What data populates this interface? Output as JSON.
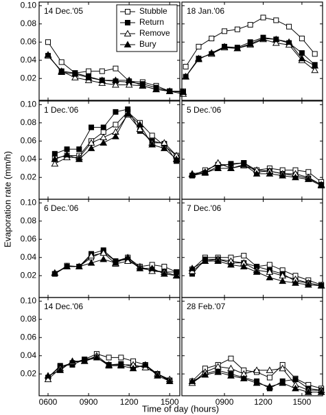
{
  "ylabel": "Evaporation rate (mm/h)",
  "xlabel": "Time of day (hours)",
  "chart_data": [
    {
      "type": "line",
      "annotation": "14 Dec.'05",
      "legend": "upper right",
      "x": [
        6,
        7,
        8,
        9,
        10,
        11,
        12,
        13,
        14,
        15,
        16
      ],
      "series": [
        {
          "name": "Stubble",
          "color": "#000000",
          "marker": "square",
          "filled": false,
          "values": [
            0.06,
            0.038,
            0.026,
            0.028,
            0.028,
            0.031,
            0.017,
            0.016,
            0.012,
            0.006,
            0.006
          ]
        },
        {
          "name": "Return",
          "color": "#000000",
          "marker": "square",
          "filled": true,
          "values": [
            0.045,
            0.028,
            0.026,
            0.022,
            0.018,
            0.017,
            0.016,
            0.014,
            0.01,
            0.006,
            0.005
          ]
        },
        {
          "name": "Remove",
          "color": "#000000",
          "marker": "triangle",
          "filled": false,
          "values": [
            0.045,
            0.028,
            0.021,
            0.018,
            0.015,
            0.013,
            0.013,
            0.012,
            0.008,
            0.006,
            0.003
          ]
        },
        {
          "name": "Bury",
          "color": "#000000",
          "marker": "triangle",
          "filled": true,
          "values": [
            0.046,
            0.027,
            0.025,
            0.021,
            0.018,
            0.018,
            0.018,
            0.012,
            0.008,
            0.006,
            0.005
          ]
        }
      ],
      "xlim": [
        5.34,
        15.75
      ],
      "ylim": [
        -0.004,
        0.104
      ],
      "ytick_labels": true,
      "xtick_labels": false,
      "xticks": [
        {
          "value": 6,
          "label": "0600"
        },
        {
          "value": 9,
          "label": "0900"
        },
        {
          "value": 12,
          "label": "1200"
        },
        {
          "value": 15,
          "label": "1500"
        }
      ],
      "yticks": [
        0.02,
        0.04,
        0.06,
        0.08,
        {
          "value": 0.1,
          "label": "0.10"
        }
      ]
    },
    {
      "type": "line",
      "annotation": "18 Jan.'06",
      "x": [
        6,
        7,
        8,
        9,
        10,
        11,
        12,
        13,
        14,
        15,
        16
      ],
      "series": [
        {
          "values": [
            0.033,
            0.055,
            0.064,
            0.072,
            0.074,
            0.079,
            0.087,
            0.084,
            0.077,
            0.064,
            0.047
          ]
        },
        {
          "values": [
            0.022,
            0.042,
            0.047,
            0.055,
            0.054,
            0.06,
            0.065,
            0.063,
            0.059,
            0.048,
            0.035
          ]
        },
        {
          "values": [
            0.022,
            0.042,
            0.047,
            0.054,
            0.053,
            0.057,
            0.063,
            0.059,
            0.057,
            0.04,
            0.029
          ]
        },
        {
          "values": [
            0.022,
            0.041,
            0.048,
            0.055,
            0.053,
            0.058,
            0.064,
            0.063,
            0.06,
            0.042,
            0.034
          ]
        }
      ],
      "xlim": [
        5.7,
        16.6
      ],
      "ylim": [
        -0.004,
        0.104
      ],
      "ytick_labels": false,
      "xtick_labels": false,
      "xticks": [
        {
          "value": 9,
          "label": "0900"
        },
        {
          "value": 12,
          "label": "1200"
        },
        {
          "value": 15,
          "label": "1500"
        }
      ],
      "yticks": [
        0.02,
        0.04,
        0.06,
        0.08,
        {
          "value": 0.1,
          "label": "0.10"
        }
      ]
    },
    {
      "type": "line",
      "annotation": "1 Dec.'06",
      "x": [
        6.5,
        7.4,
        8.3,
        9.2,
        10.1,
        11,
        11.9,
        12.8,
        13.7,
        14.6,
        15.5
      ],
      "series": [
        {
          "values": [
            0.041,
            0.044,
            0.044,
            0.06,
            0.07,
            0.078,
            0.092,
            0.08,
            0.066,
            0.055,
            0.044
          ]
        },
        {
          "values": [
            0.046,
            0.051,
            0.051,
            0.075,
            0.075,
            0.092,
            0.095,
            0.071,
            0.06,
            0.057,
            0.038
          ]
        },
        {
          "values": [
            0.035,
            0.042,
            0.042,
            0.058,
            0.064,
            0.07,
            0.089,
            0.073,
            0.058,
            0.058,
            0.044
          ]
        },
        {
          "values": [
            0.04,
            0.045,
            0.04,
            0.052,
            0.058,
            0.065,
            0.09,
            0.078,
            0.056,
            0.052,
            0.04
          ]
        }
      ],
      "xlim": [
        5.34,
        15.75
      ],
      "ylim": [
        -0.004,
        0.104
      ],
      "ytick_labels": true,
      "xtick_labels": false,
      "xticks": [
        {
          "value": 6,
          "label": "0600"
        },
        {
          "value": 9,
          "label": "0900"
        },
        {
          "value": 12,
          "label": "1200"
        },
        {
          "value": 15,
          "label": "1500"
        }
      ],
      "yticks": [
        0.02,
        0.04,
        0.06,
        0.08,
        {
          "value": 0.1,
          "label": "0.10"
        }
      ]
    },
    {
      "type": "line",
      "annotation": "5 Dec.'06",
      "x": [
        6.5,
        7.5,
        8.5,
        9.5,
        10.5,
        11.5,
        12.5,
        13.5,
        14.5,
        15.5,
        16.5
      ],
      "series": [
        {
          "values": [
            0.022,
            0.028,
            0.034,
            0.034,
            0.036,
            0.028,
            0.03,
            0.028,
            0.028,
            0.026,
            0.015
          ]
        },
        {
          "values": [
            0.022,
            0.025,
            0.032,
            0.035,
            0.036,
            0.026,
            0.027,
            0.024,
            0.022,
            0.019,
            0.012
          ]
        },
        {
          "values": [
            0.024,
            0.026,
            0.036,
            0.03,
            0.033,
            0.028,
            0.027,
            0.024,
            0.024,
            0.02,
            0.012
          ]
        },
        {
          "values": [
            0.023,
            0.025,
            0.03,
            0.03,
            0.034,
            0.024,
            0.024,
            0.022,
            0.02,
            0.018,
            0.011
          ]
        }
      ],
      "xlim": [
        5.7,
        16.6
      ],
      "ylim": [
        -0.004,
        0.104
      ],
      "ytick_labels": false,
      "xtick_labels": false,
      "xticks": [
        {
          "value": 9,
          "label": "0900"
        },
        {
          "value": 12,
          "label": "1200"
        },
        {
          "value": 15,
          "label": "1500"
        }
      ],
      "yticks": [
        0.02,
        0.04,
        0.06,
        0.08,
        {
          "value": 0.1,
          "label": "0.10"
        }
      ]
    },
    {
      "type": "line",
      "annotation": "6 Dec.'06",
      "x": [
        6.5,
        7.4,
        8.3,
        9.2,
        10.1,
        11,
        11.9,
        12.8,
        13.7,
        14.6,
        15.5
      ],
      "series": [
        {
          "values": [
            0.022,
            0.031,
            0.03,
            0.04,
            0.046,
            0.036,
            0.04,
            0.03,
            0.032,
            0.03,
            0.024
          ]
        },
        {
          "values": [
            0.022,
            0.03,
            0.03,
            0.044,
            0.048,
            0.036,
            0.038,
            0.028,
            0.026,
            0.024,
            0.024
          ]
        },
        {
          "values": [
            0.023,
            0.03,
            0.03,
            0.042,
            0.045,
            0.033,
            0.036,
            0.03,
            0.025,
            0.024,
            0.02
          ]
        },
        {
          "values": [
            0.023,
            0.03,
            0.03,
            0.034,
            0.038,
            0.034,
            0.04,
            0.028,
            0.028,
            0.022,
            0.02
          ]
        }
      ],
      "xlim": [
        5.34,
        15.75
      ],
      "ylim": [
        -0.004,
        0.104
      ],
      "ytick_labels": true,
      "xtick_labels": false,
      "xticks": [
        {
          "value": 6,
          "label": "0600"
        },
        {
          "value": 9,
          "label": "0900"
        },
        {
          "value": 12,
          "label": "1200"
        },
        {
          "value": 15,
          "label": "1500"
        }
      ],
      "yticks": [
        0.02,
        0.04,
        0.06,
        0.08,
        {
          "value": 0.1,
          "label": "0.10"
        }
      ]
    },
    {
      "type": "line",
      "annotation": "7 Dec.'06",
      "x": [
        6.5,
        7.5,
        8.5,
        9.5,
        10.5,
        11.5,
        12.5,
        13.5,
        14.5,
        15.5,
        16.5
      ],
      "series": [
        {
          "values": [
            0.027,
            0.04,
            0.04,
            0.04,
            0.042,
            0.03,
            0.032,
            0.026,
            0.02,
            0.015,
            0.01
          ]
        },
        {
          "values": [
            0.022,
            0.038,
            0.038,
            0.034,
            0.034,
            0.03,
            0.026,
            0.022,
            0.014,
            0.012,
            0.009
          ]
        },
        {
          "values": [
            0.025,
            0.036,
            0.038,
            0.036,
            0.034,
            0.026,
            0.024,
            0.02,
            0.016,
            0.012,
            0.009
          ]
        },
        {
          "values": [
            0.028,
            0.036,
            0.036,
            0.032,
            0.03,
            0.024,
            0.018,
            0.014,
            0.012,
            0.01,
            0.009
          ]
        }
      ],
      "xlim": [
        5.7,
        16.6
      ],
      "ylim": [
        -0.004,
        0.104
      ],
      "ytick_labels": false,
      "xtick_labels": false,
      "xticks": [
        {
          "value": 9,
          "label": "0900"
        },
        {
          "value": 12,
          "label": "1200"
        },
        {
          "value": 15,
          "label": "1500"
        }
      ],
      "yticks": [
        0.02,
        0.04,
        0.06,
        0.08,
        {
          "value": 0.1,
          "label": "0.10"
        }
      ]
    },
    {
      "type": "line",
      "annotation": "14 Dec.'06",
      "x": [
        6,
        6.9,
        7.8,
        8.7,
        9.6,
        10.5,
        11.4,
        12.3,
        13.2,
        14.1,
        15
      ],
      "series": [
        {
          "values": [
            0.016,
            0.028,
            0.032,
            0.036,
            0.042,
            0.038,
            0.038,
            0.034,
            0.03,
            0.02,
            0.013
          ]
        },
        {
          "values": [
            0.016,
            0.029,
            0.03,
            0.036,
            0.038,
            0.03,
            0.031,
            0.028,
            0.029,
            0.02,
            0.012
          ]
        },
        {
          "values": [
            0.014,
            0.026,
            0.033,
            0.034,
            0.04,
            0.03,
            0.03,
            0.03,
            0.027,
            0.02,
            0.014
          ]
        },
        {
          "values": [
            0.018,
            0.024,
            0.034,
            0.034,
            0.038,
            0.029,
            0.029,
            0.026,
            0.03,
            0.018,
            0.012
          ]
        }
      ],
      "xlim": [
        5.34,
        15.75
      ],
      "ylim": [
        -0.004,
        0.104
      ],
      "ytick_labels": true,
      "xtick_labels": true,
      "xticks": [
        {
          "value": 6,
          "label": "0600"
        },
        {
          "value": 9,
          "label": "0900"
        },
        {
          "value": 12,
          "label": "1200"
        },
        {
          "value": 15,
          "label": "1500"
        }
      ],
      "yticks": [
        0.02,
        0.04,
        0.06,
        0.08,
        {
          "value": 0.1,
          "label": "0.10"
        }
      ]
    },
    {
      "type": "line",
      "annotation": "28 Feb.'07",
      "x": [
        6.5,
        7.5,
        8.5,
        9.5,
        10.5,
        11.5,
        12.5,
        13.5,
        14.5,
        15.5,
        16.5
      ],
      "series": [
        {
          "values": [
            0.012,
            0.026,
            0.03,
            0.037,
            0.024,
            0.022,
            0.016,
            0.03,
            0.015,
            0.008,
            0.004
          ]
        },
        {
          "values": [
            0.01,
            0.02,
            0.024,
            0.02,
            0.016,
            0.012,
            0.004,
            0.012,
            0.014,
            0.004,
            0.002
          ]
        },
        {
          "values": [
            0.01,
            0.022,
            0.028,
            0.026,
            0.02,
            0.024,
            0.024,
            0.026,
            0.008,
            0.002,
            0.002
          ]
        },
        {
          "values": [
            0.012,
            0.019,
            0.022,
            0.018,
            0.015,
            0.01,
            0.006,
            0.01,
            0.004,
            0.0,
            0.0
          ]
        }
      ],
      "xlim": [
        5.7,
        16.6
      ],
      "ylim": [
        -0.004,
        0.104
      ],
      "ytick_labels": false,
      "xtick_labels": true,
      "xticks": [
        {
          "value": 9,
          "label": "0900"
        },
        {
          "value": 12,
          "label": "1200"
        },
        {
          "value": 15,
          "label": "1500"
        }
      ],
      "yticks": [
        0.02,
        0.04,
        0.06,
        0.08,
        {
          "value": 0.1,
          "label": "0.10"
        }
      ]
    }
  ]
}
